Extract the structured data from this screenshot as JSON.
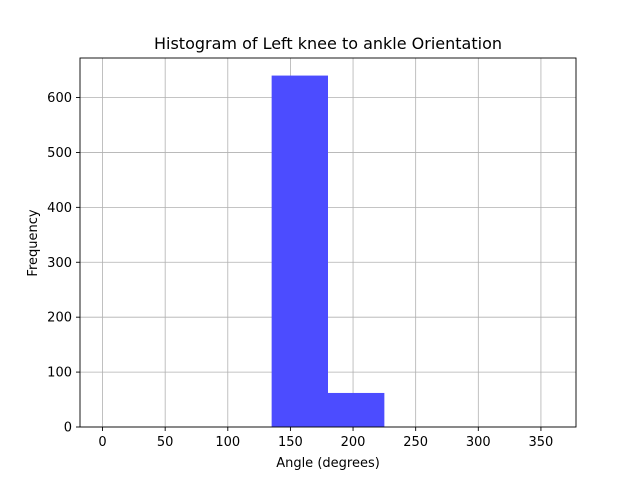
{
  "chart_data": {
    "type": "bar",
    "subtype": "histogram",
    "title": "Histogram of Left knee to ankle Orientation",
    "xlabel": "Angle (degrees)",
    "ylabel": "Frequency",
    "xlim": [
      -18,
      378
    ],
    "ylim": [
      0,
      672
    ],
    "xticks": [
      0,
      50,
      100,
      150,
      200,
      250,
      300,
      350
    ],
    "yticks": [
      0,
      100,
      200,
      300,
      400,
      500,
      600
    ],
    "grid": true,
    "bar_color": "#4c4cff",
    "bins": [
      {
        "x0": 135,
        "x1": 180,
        "count": 640
      },
      {
        "x0": 180,
        "x1": 225,
        "count": 62
      }
    ]
  }
}
